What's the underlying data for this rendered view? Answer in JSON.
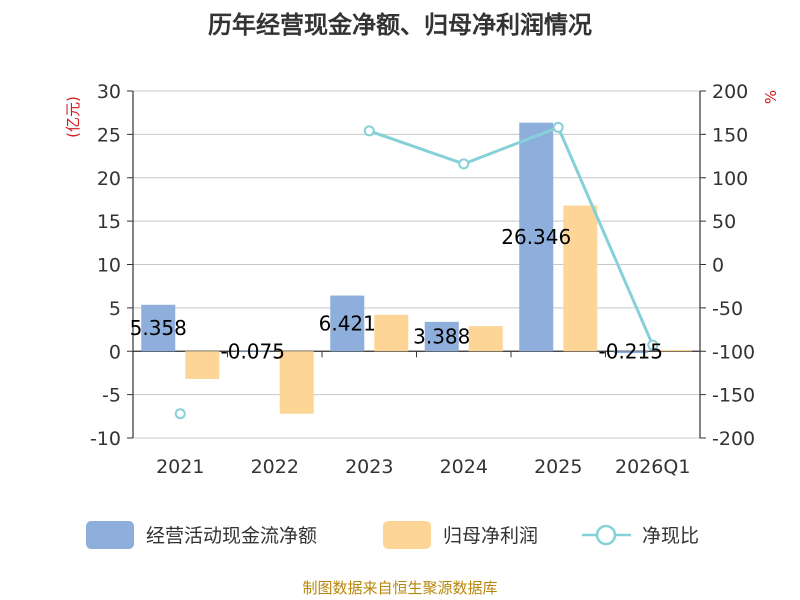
{
  "chart_data": {
    "type": "bar",
    "title": "历年经营现金净额、归母净利润情况",
    "y_left_unit": "(亿元)",
    "y_right_unit": "%",
    "source": "制图数据来自恒生聚源数据库",
    "categories": [
      "2021",
      "2022",
      "2023",
      "2024",
      "2025",
      "2026Q1"
    ],
    "y_left_ticks": [
      "30",
      "25",
      "20",
      "15",
      "10",
      "5",
      "0",
      "-5",
      "-10"
    ],
    "y_right_ticks": [
      "200",
      "150",
      "100",
      "50",
      "0",
      "-50",
      "-100",
      "-150",
      "-200"
    ],
    "ylim_left": [
      -10,
      30
    ],
    "ylim_right": [
      -200,
      200
    ],
    "grid": true,
    "legend_position": "bottom",
    "series": [
      {
        "name": "经营活动现金流净额",
        "axis": "left",
        "kind": "bar",
        "color": "#8eaedb",
        "values": [
          5.358,
          -0.075,
          6.421,
          3.388,
          26.346,
          -0.215
        ],
        "labels": [
          "5.358",
          "-0.075",
          "6.421",
          "3.388",
          "26.346",
          "-0.215"
        ]
      },
      {
        "name": "归母净利润",
        "axis": "left",
        "kind": "bar",
        "color": "#fdd697",
        "values": [
          -3.2,
          -7.2,
          4.2,
          2.9,
          16.8,
          0.15
        ]
      },
      {
        "name": "净现比",
        "axis": "right",
        "kind": "line",
        "color": "#86d1d8",
        "values": [
          -172,
          null,
          154,
          116,
          158,
          -93
        ]
      }
    ],
    "colors": {
      "title": "#333333",
      "unit": "#d7191c",
      "source": "#b8860b",
      "grid": "#c8c8c8",
      "axis": "#333333"
    }
  }
}
